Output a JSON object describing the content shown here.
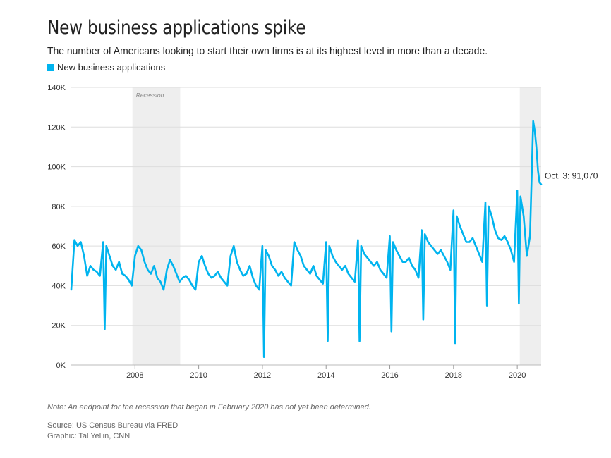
{
  "chart_data": {
    "type": "line",
    "title": "New business applications spike",
    "subtitle": "The number of Americans looking to start their own firms is at its highest level in more than a decade.",
    "series": [
      {
        "name": "New business applications",
        "color": "#00b4ef",
        "x": [
          2006.0,
          2006.1,
          2006.2,
          2006.3,
          2006.4,
          2006.5,
          2006.6,
          2006.7,
          2006.8,
          2006.9,
          2007.0,
          2007.05,
          2007.1,
          2007.2,
          2007.3,
          2007.4,
          2007.5,
          2007.6,
          2007.7,
          2007.8,
          2007.9,
          2008.0,
          2008.1,
          2008.2,
          2008.3,
          2008.4,
          2008.5,
          2008.6,
          2008.7,
          2008.8,
          2008.9,
          2009.0,
          2009.1,
          2009.2,
          2009.3,
          2009.4,
          2009.5,
          2009.6,
          2009.7,
          2009.8,
          2009.9,
          2010.0,
          2010.1,
          2010.2,
          2010.3,
          2010.4,
          2010.5,
          2010.6,
          2010.7,
          2010.8,
          2010.9,
          2011.0,
          2011.1,
          2011.2,
          2011.3,
          2011.4,
          2011.5,
          2011.6,
          2011.7,
          2011.8,
          2011.9,
          2012.0,
          2012.05,
          2012.1,
          2012.2,
          2012.3,
          2012.4,
          2012.5,
          2012.6,
          2012.7,
          2012.8,
          2012.9,
          2013.0,
          2013.1,
          2013.2,
          2013.3,
          2013.4,
          2013.5,
          2013.6,
          2013.7,
          2013.8,
          2013.9,
          2014.0,
          2014.05,
          2014.1,
          2014.2,
          2014.3,
          2014.4,
          2014.5,
          2014.6,
          2014.7,
          2014.8,
          2014.9,
          2015.0,
          2015.05,
          2015.1,
          2015.2,
          2015.3,
          2015.4,
          2015.5,
          2015.6,
          2015.7,
          2015.8,
          2015.9,
          2016.0,
          2016.05,
          2016.1,
          2016.2,
          2016.3,
          2016.4,
          2016.5,
          2016.6,
          2016.7,
          2016.8,
          2016.9,
          2017.0,
          2017.05,
          2017.1,
          2017.2,
          2017.3,
          2017.4,
          2017.5,
          2017.6,
          2017.7,
          2017.8,
          2017.9,
          2018.0,
          2018.05,
          2018.1,
          2018.2,
          2018.3,
          2018.4,
          2018.5,
          2018.6,
          2018.7,
          2018.8,
          2018.9,
          2019.0,
          2019.05,
          2019.1,
          2019.2,
          2019.3,
          2019.4,
          2019.5,
          2019.6,
          2019.7,
          2019.8,
          2019.9,
          2020.0,
          2020.05,
          2020.1,
          2020.2,
          2020.3,
          2020.4,
          2020.5,
          2020.55,
          2020.6,
          2020.65,
          2020.7,
          2020.75
        ],
        "values": [
          38000,
          63000,
          60000,
          62000,
          55000,
          45000,
          50000,
          48000,
          47000,
          45000,
          62000,
          18000,
          60000,
          55000,
          50000,
          48000,
          52000,
          46000,
          45000,
          43000,
          40000,
          55000,
          60000,
          58000,
          52000,
          48000,
          46000,
          50000,
          44000,
          42000,
          38000,
          48000,
          53000,
          50000,
          46000,
          42000,
          44000,
          45000,
          43000,
          40000,
          38000,
          52000,
          55000,
          50000,
          46000,
          44000,
          45000,
          47000,
          44000,
          42000,
          40000,
          55000,
          60000,
          52000,
          48000,
          45000,
          46000,
          50000,
          44000,
          40000,
          38000,
          60000,
          4000,
          58000,
          55000,
          50000,
          48000,
          45000,
          47000,
          44000,
          42000,
          40000,
          62000,
          58000,
          55000,
          50000,
          48000,
          46000,
          50000,
          45000,
          43000,
          41000,
          62000,
          12000,
          60000,
          55000,
          52000,
          50000,
          48000,
          50000,
          46000,
          44000,
          42000,
          63000,
          12000,
          60000,
          56000,
          54000,
          52000,
          50000,
          52000,
          48000,
          46000,
          44000,
          65000,
          17000,
          62000,
          58000,
          55000,
          52000,
          52000,
          54000,
          50000,
          48000,
          44000,
          68000,
          23000,
          66000,
          62000,
          60000,
          58000,
          56000,
          58000,
          55000,
          52000,
          48000,
          78000,
          11000,
          75000,
          70000,
          66000,
          62000,
          62000,
          64000,
          60000,
          56000,
          52000,
          82000,
          30000,
          80000,
          75000,
          68000,
          64000,
          63000,
          65000,
          62000,
          58000,
          52000,
          88000,
          31000,
          85000,
          75000,
          55000,
          65000,
          123000,
          118000,
          110000,
          98000,
          92000,
          91070
        ]
      }
    ],
    "xlim": [
      2006.0,
      2020.75
    ],
    "ylim": [
      0,
      140000
    ],
    "x_ticks": [
      2008,
      2010,
      2012,
      2014,
      2016,
      2018,
      2020
    ],
    "x_tick_labels": [
      "2008",
      "2010",
      "2012",
      "2014",
      "2016",
      "2018",
      "2020"
    ],
    "y_ticks": [
      0,
      20000,
      40000,
      60000,
      80000,
      100000,
      120000,
      140000
    ],
    "y_tick_labels": [
      "0K",
      "20K",
      "40K",
      "60K",
      "80K",
      "100K",
      "120K",
      "140K"
    ],
    "recessions": [
      {
        "start": 2007.92,
        "end": 2009.42,
        "label": "Recession"
      },
      {
        "start": 2020.08,
        "end": 2020.75,
        "label": ""
      }
    ],
    "end_annotation": "Oct. 3: 91,070",
    "legend": {
      "label": "New business applications",
      "position": "top-left"
    },
    "grid": true
  },
  "footer": {
    "note": "Note: An endpoint for the recession that began in February 2020 has not yet been determined.",
    "source": "Source: US Census Bureau via FRED",
    "credit": "Graphic: Tal Yellin, CNN"
  }
}
